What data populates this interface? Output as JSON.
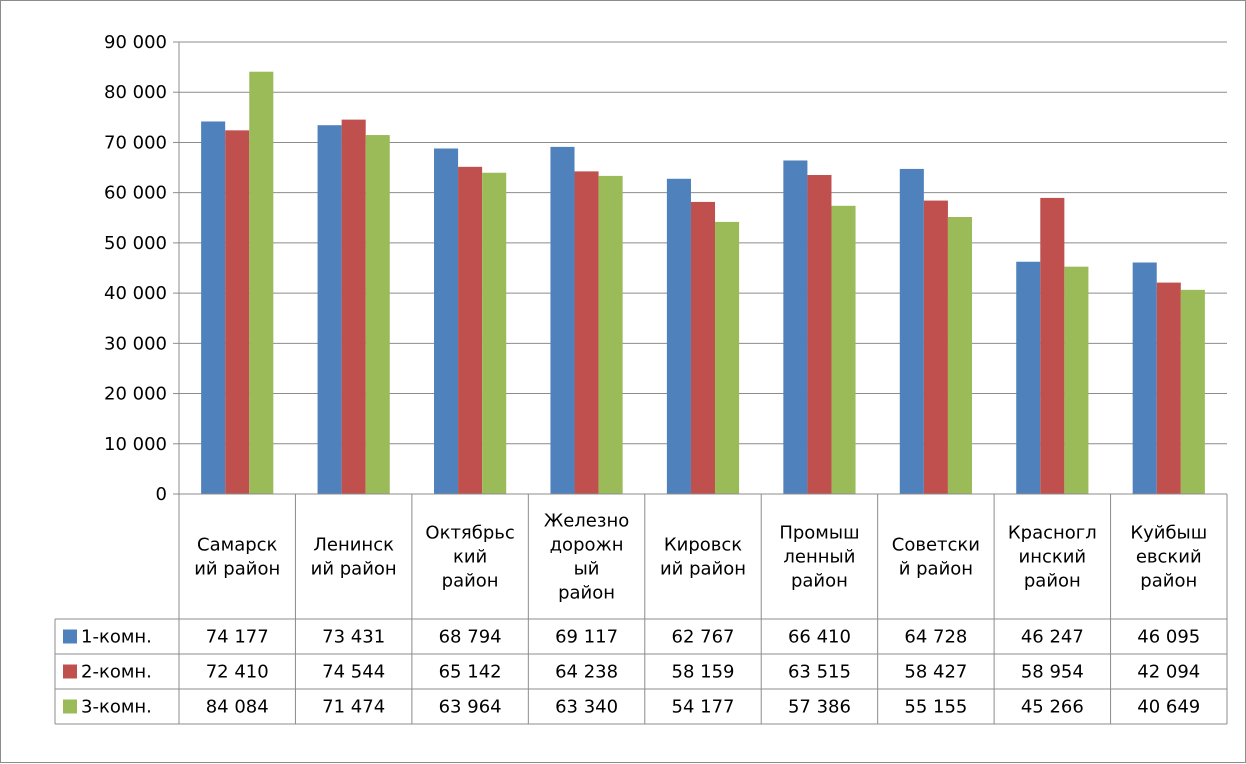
{
  "chart_data": {
    "type": "bar",
    "categories": [
      [
        "Самарск",
        "ий район"
      ],
      [
        "Ленинск",
        "ий район"
      ],
      [
        "Октябрьс",
        "кий",
        "район"
      ],
      [
        "Железно",
        "дорожн",
        "ый",
        "район"
      ],
      [
        "Кировск",
        "ий район"
      ],
      [
        "Промыш",
        "ленный",
        "район"
      ],
      [
        "Советски",
        "й район"
      ],
      [
        "Красногл",
        "инский",
        "район"
      ],
      [
        "Куйбыш",
        "евский",
        "район"
      ]
    ],
    "series": [
      {
        "name": "1-комн.",
        "color": "#4f81bd",
        "values": [
          74177,
          73431,
          68794,
          69117,
          62767,
          66410,
          64728,
          46247,
          46095
        ],
        "labels": [
          "74 177",
          "73 431",
          "68 794",
          "69 117",
          "62 767",
          "66 410",
          "64 728",
          "46 247",
          "46 095"
        ]
      },
      {
        "name": "2-комн.",
        "color": "#c0504d",
        "values": [
          72410,
          74544,
          65142,
          64238,
          58159,
          63515,
          58427,
          58954,
          42094
        ],
        "labels": [
          "72 410",
          "74 544",
          "65 142",
          "64 238",
          "58 159",
          "63 515",
          "58 427",
          "58 954",
          "42 094"
        ]
      },
      {
        "name": "3-комн.",
        "color": "#9bbb59",
        "values": [
          84084,
          71474,
          63964,
          63340,
          54177,
          57386,
          55155,
          45266,
          40649
        ],
        "labels": [
          "84 084",
          "71 474",
          "63 964",
          "63 340",
          "54 177",
          "57 386",
          "55 155",
          "45 266",
          "40 649"
        ]
      }
    ],
    "yticks": [
      {
        "value": 0,
        "label": "0"
      },
      {
        "value": 10000,
        "label": "10 000"
      },
      {
        "value": 20000,
        "label": "20 000"
      },
      {
        "value": 30000,
        "label": "30 000"
      },
      {
        "value": 40000,
        "label": "40 000"
      },
      {
        "value": 50000,
        "label": "50 000"
      },
      {
        "value": 60000,
        "label": "60 000"
      },
      {
        "value": 70000,
        "label": "70 000"
      },
      {
        "value": 80000,
        "label": "80 000"
      },
      {
        "value": 90000,
        "label": "90 000"
      }
    ],
    "ylim": [
      0,
      90000
    ],
    "grid": true,
    "data_table": true,
    "title": "",
    "xlabel": "",
    "ylabel": ""
  }
}
